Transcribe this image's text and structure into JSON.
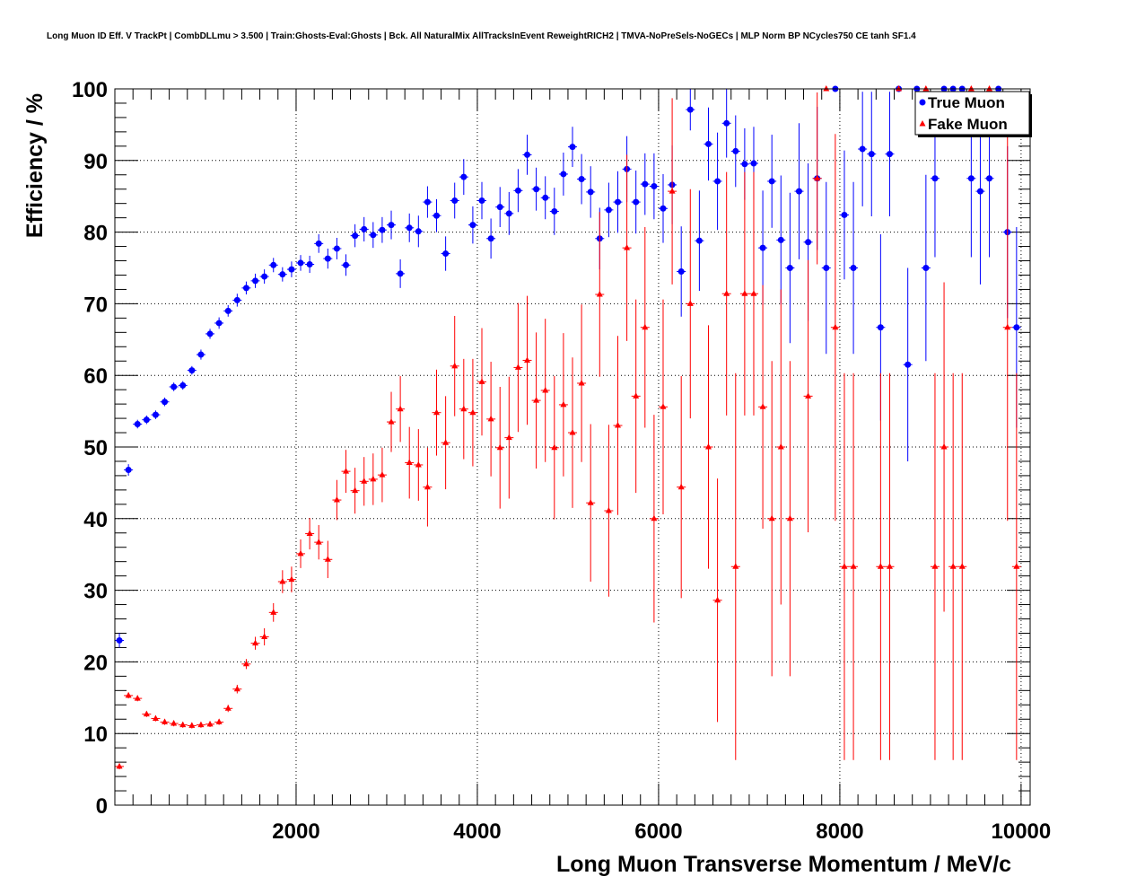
{
  "chart_data": {
    "type": "scatter",
    "title": "Long Muon ID Eff. V TrackPt | CombDLLmu > 3.500 | Train:Ghosts-Eval:Ghosts | Bck. All NaturalMix AllTracksInEvent ReweightRICH2 | TMVA-NoPreSels-NoGECs | MLP Norm BP NCycles750 CE tanh SF1.4",
    "xlabel": "Long Muon Transverse Momentum / MeV/c",
    "ylabel": "Efficiency / %",
    "xlim": [
      0,
      10100
    ],
    "ylim": [
      0,
      100
    ],
    "xticks": [
      2000,
      4000,
      6000,
      8000,
      10000
    ],
    "yticks": [
      0,
      10,
      20,
      30,
      40,
      50,
      60,
      70,
      80,
      90,
      100
    ],
    "grid": true,
    "legend_position": "top-right",
    "series": [
      {
        "name": "True Muon",
        "color": "#0000ff",
        "marker": "circle",
        "points": [
          [
            50,
            23.0,
            1.0
          ],
          [
            150,
            46.8,
            0.8
          ],
          [
            250,
            53.2,
            0.6
          ],
          [
            350,
            53.8,
            0.6
          ],
          [
            450,
            54.5,
            0.6
          ],
          [
            550,
            56.3,
            0.6
          ],
          [
            650,
            58.4,
            0.6
          ],
          [
            750,
            58.6,
            0.6
          ],
          [
            850,
            60.7,
            0.6
          ],
          [
            950,
            62.9,
            0.7
          ],
          [
            1050,
            65.8,
            0.7
          ],
          [
            1150,
            67.3,
            0.8
          ],
          [
            1250,
            69.0,
            0.8
          ],
          [
            1350,
            70.5,
            0.9
          ],
          [
            1450,
            72.2,
            0.9
          ],
          [
            1550,
            73.2,
            1.0
          ],
          [
            1650,
            73.8,
            1.0
          ],
          [
            1750,
            75.4,
            1.0
          ],
          [
            1850,
            74.1,
            1.0
          ],
          [
            1950,
            74.8,
            1.1
          ],
          [
            2050,
            75.7,
            1.1
          ],
          [
            2150,
            75.5,
            1.2
          ],
          [
            2250,
            78.4,
            1.3
          ],
          [
            2350,
            76.3,
            1.4
          ],
          [
            2450,
            77.7,
            1.5
          ],
          [
            2550,
            75.4,
            1.5
          ],
          [
            2650,
            79.5,
            1.6
          ],
          [
            2750,
            80.4,
            1.7
          ],
          [
            2850,
            79.6,
            1.8
          ],
          [
            2950,
            80.3,
            1.8
          ],
          [
            3050,
            81.0,
            2.0
          ],
          [
            3150,
            74.2,
            2.0
          ],
          [
            3250,
            80.6,
            2.0
          ],
          [
            3350,
            80.1,
            2.2
          ],
          [
            3450,
            84.2,
            2.2
          ],
          [
            3550,
            82.3,
            2.3
          ],
          [
            3650,
            77.0,
            2.4
          ],
          [
            3750,
            84.4,
            2.5
          ],
          [
            3850,
            87.7,
            2.5
          ],
          [
            3950,
            81.0,
            2.6
          ],
          [
            4050,
            84.4,
            2.6
          ],
          [
            4150,
            79.1,
            2.8
          ],
          [
            4250,
            83.5,
            2.8
          ],
          [
            4350,
            82.6,
            3.0
          ],
          [
            4450,
            85.8,
            3.0
          ],
          [
            4550,
            90.8,
            2.8
          ],
          [
            4650,
            86.0,
            3.0
          ],
          [
            4750,
            84.8,
            3.0
          ],
          [
            4850,
            82.9,
            3.3
          ],
          [
            4950,
            88.1,
            3.0
          ],
          [
            5050,
            91.9,
            2.8
          ],
          [
            5150,
            87.4,
            3.5
          ],
          [
            5250,
            85.6,
            3.6
          ],
          [
            5350,
            79.1,
            4.3
          ],
          [
            5450,
            83.1,
            3.8
          ],
          [
            5550,
            84.2,
            4.3
          ],
          [
            5650,
            88.8,
            4.6
          ],
          [
            5750,
            84.2,
            4.4
          ],
          [
            5850,
            86.7,
            4.3
          ],
          [
            5950,
            86.4,
            4.6
          ],
          [
            6050,
            83.3,
            4.8
          ],
          [
            6150,
            86.6,
            5.5
          ],
          [
            6250,
            74.5,
            6.3
          ],
          [
            6350,
            97.1,
            2.9
          ],
          [
            6450,
            78.8,
            7.0
          ],
          [
            6550,
            92.3,
            5.1
          ],
          [
            6650,
            87.1,
            6.8
          ],
          [
            6750,
            95.2,
            4.8
          ],
          [
            6850,
            91.3,
            5.0
          ],
          [
            6950,
            89.5,
            5.0
          ],
          [
            7050,
            89.6,
            5.1
          ],
          [
            7150,
            77.8,
            8.0
          ],
          [
            7250,
            87.1,
            6.5
          ],
          [
            7350,
            78.9,
            9.0
          ],
          [
            7450,
            75.0,
            10.5
          ],
          [
            7550,
            85.7,
            9.5
          ],
          [
            7650,
            78.6,
            11.0
          ],
          [
            7750,
            87.5,
            10.0
          ],
          [
            7850,
            75.0,
            12.0
          ],
          [
            7950,
            100.0,
            0.0
          ],
          [
            8050,
            82.4,
            9.0
          ],
          [
            8150,
            75.0,
            12.0
          ],
          [
            8250,
            91.6,
            8.0
          ],
          [
            8350,
            90.9,
            8.7
          ],
          [
            8450,
            66.7,
            13.0
          ],
          [
            8550,
            90.9,
            8.7
          ],
          [
            8650,
            100.0,
            0.0
          ],
          [
            8750,
            61.5,
            13.5
          ],
          [
            8850,
            100.0,
            0.0
          ],
          [
            8950,
            75.0,
            13.0
          ],
          [
            9050,
            87.5,
            11.0
          ],
          [
            9150,
            100.0,
            0.0
          ],
          [
            9250,
            100.0,
            0.0
          ],
          [
            9350,
            100.0,
            0.0
          ],
          [
            9450,
            87.5,
            11.0
          ],
          [
            9550,
            85.7,
            13.0
          ],
          [
            9650,
            87.5,
            11.0
          ],
          [
            9750,
            100.0,
            0.0
          ],
          [
            9850,
            80.0,
            12.0
          ],
          [
            9950,
            66.7,
            14.0
          ]
        ]
      },
      {
        "name": "Fake Muon",
        "color": "#ff0000",
        "marker": "triangle",
        "points": [
          [
            50,
            5.4,
            0.4
          ],
          [
            150,
            15.3,
            0.4
          ],
          [
            250,
            14.9,
            0.4
          ],
          [
            350,
            12.7,
            0.4
          ],
          [
            450,
            12.1,
            0.4
          ],
          [
            550,
            11.6,
            0.4
          ],
          [
            650,
            11.4,
            0.4
          ],
          [
            750,
            11.2,
            0.4
          ],
          [
            850,
            11.1,
            0.4
          ],
          [
            950,
            11.2,
            0.4
          ],
          [
            1050,
            11.3,
            0.4
          ],
          [
            1150,
            11.6,
            0.4
          ],
          [
            1250,
            13.5,
            0.5
          ],
          [
            1350,
            16.2,
            0.6
          ],
          [
            1450,
            19.7,
            0.7
          ],
          [
            1550,
            22.6,
            0.9
          ],
          [
            1650,
            23.5,
            1.2
          ],
          [
            1750,
            26.9,
            1.3
          ],
          [
            1850,
            31.2,
            1.6
          ],
          [
            1950,
            31.5,
            1.8
          ],
          [
            2050,
            35.1,
            2.0
          ],
          [
            2150,
            37.9,
            2.2
          ],
          [
            2250,
            36.7,
            2.4
          ],
          [
            2350,
            34.3,
            2.6
          ],
          [
            2450,
            42.6,
            2.8
          ],
          [
            2550,
            46.6,
            3.0
          ],
          [
            2650,
            43.9,
            3.2
          ],
          [
            2750,
            45.2,
            3.4
          ],
          [
            2850,
            45.5,
            3.6
          ],
          [
            2950,
            46.1,
            3.8
          ],
          [
            3050,
            53.5,
            4.2
          ],
          [
            3150,
            55.3,
            4.6
          ],
          [
            3250,
            47.8,
            5.0
          ],
          [
            3350,
            47.5,
            5.0
          ],
          [
            3450,
            44.4,
            5.5
          ],
          [
            3550,
            54.8,
            6.0
          ],
          [
            3650,
            50.6,
            6.5
          ],
          [
            3750,
            61.3,
            7.0
          ],
          [
            3850,
            55.3,
            7.0
          ],
          [
            3950,
            54.8,
            7.5
          ],
          [
            4050,
            59.1,
            7.5
          ],
          [
            4150,
            53.9,
            8.0
          ],
          [
            4250,
            49.9,
            8.5
          ],
          [
            4350,
            51.3,
            8.5
          ],
          [
            4450,
            61.1,
            9.0
          ],
          [
            4550,
            62.1,
            9.0
          ],
          [
            4650,
            56.5,
            9.5
          ],
          [
            4750,
            57.9,
            10.0
          ],
          [
            4850,
            49.9,
            10.0
          ],
          [
            4950,
            55.9,
            10.0
          ],
          [
            5050,
            52.0,
            10.5
          ],
          [
            5150,
            58.9,
            11.0
          ],
          [
            5250,
            42.2,
            11.0
          ],
          [
            5350,
            71.3,
            11.5
          ],
          [
            5450,
            41.1,
            12.0
          ],
          [
            5550,
            53.0,
            12.5
          ],
          [
            5650,
            77.8,
            13.0
          ],
          [
            5750,
            57.1,
            13.5
          ],
          [
            5850,
            66.7,
            14.0
          ],
          [
            5950,
            40.0,
            14.5
          ],
          [
            6050,
            55.6,
            15.0
          ],
          [
            6150,
            85.7,
            13.0
          ],
          [
            6250,
            44.4,
            15.5
          ],
          [
            6350,
            70.0,
            16.0
          ],
          [
            6550,
            50.0,
            17.0
          ],
          [
            6650,
            28.6,
            17.0
          ],
          [
            6750,
            71.4,
            17.0
          ],
          [
            6850,
            33.3,
            27.0
          ],
          [
            6950,
            71.4,
            17.0
          ],
          [
            7050,
            71.4,
            17.0
          ],
          [
            7150,
            55.6,
            17.0
          ],
          [
            7250,
            40.0,
            22.0
          ],
          [
            7350,
            50.0,
            22.0
          ],
          [
            7450,
            40.0,
            22.0
          ],
          [
            7650,
            57.1,
            19.0
          ],
          [
            7750,
            87.5,
            12.0
          ],
          [
            7850,
            100.0,
            0.0
          ],
          [
            7950,
            66.7,
            27.0
          ],
          [
            8050,
            33.3,
            27.0
          ],
          [
            8150,
            33.3,
            27.0
          ],
          [
            8450,
            33.3,
            27.0
          ],
          [
            8550,
            33.3,
            27.0
          ],
          [
            8650,
            100.0,
            0.0
          ],
          [
            8950,
            100.0,
            0.0
          ],
          [
            9050,
            33.3,
            27.0
          ],
          [
            9150,
            50.0,
            23.0
          ],
          [
            9250,
            33.3,
            27.0
          ],
          [
            9350,
            33.3,
            27.0
          ],
          [
            9450,
            100.0,
            0.0
          ],
          [
            9650,
            100.0,
            0.0
          ],
          [
            9850,
            66.7,
            27.0
          ],
          [
            9950,
            33.3,
            27.0
          ]
        ]
      }
    ]
  }
}
